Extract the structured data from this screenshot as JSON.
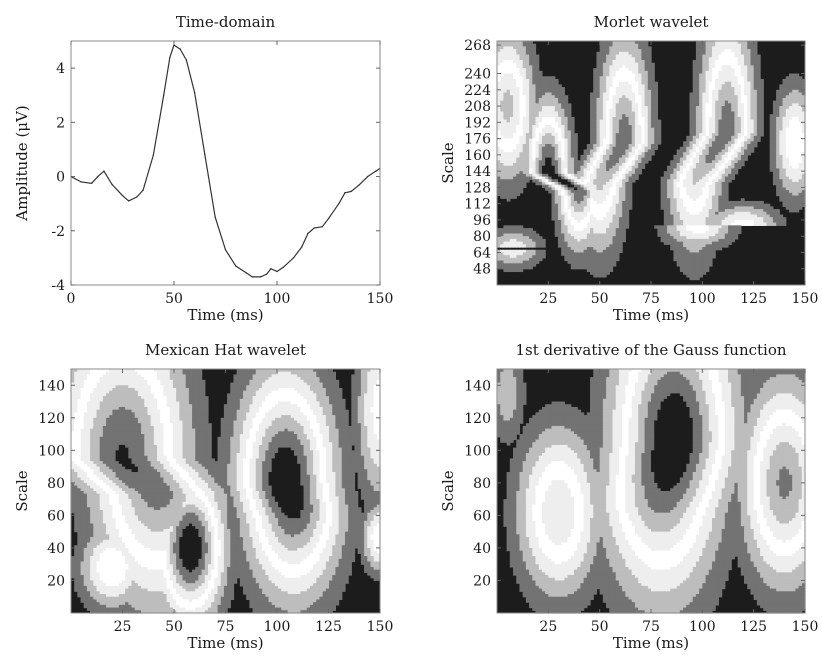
{
  "chart_data": [
    {
      "id": "time-domain",
      "type": "line",
      "title": "Time-domain",
      "xlabel": "Time (ms)",
      "ylabel": "Amplitude (μV)",
      "xlim": [
        0,
        150
      ],
      "ylim": [
        -4,
        5
      ],
      "xticks": [
        0,
        50,
        100,
        150
      ],
      "yticks": [
        -4,
        -2,
        0,
        2,
        4
      ],
      "grid": false,
      "series": [
        {
          "x": [
            0,
            5,
            10,
            13,
            16,
            20,
            25,
            28,
            32,
            35,
            40,
            45,
            48,
            50,
            53,
            56,
            60,
            65,
            70,
            75,
            80,
            85,
            88,
            92,
            95,
            97,
            100,
            103,
            108,
            112,
            115,
            118,
            122,
            125,
            130,
            133,
            136,
            140,
            144,
            148,
            150
          ],
          "y": [
            0.0,
            -0.2,
            -0.25,
            0.0,
            0.2,
            -0.3,
            -0.7,
            -0.9,
            -0.75,
            -0.5,
            0.8,
            3.0,
            4.4,
            4.85,
            4.7,
            4.3,
            3.1,
            0.8,
            -1.5,
            -2.7,
            -3.3,
            -3.55,
            -3.7,
            -3.7,
            -3.6,
            -3.4,
            -3.5,
            -3.35,
            -3.0,
            -2.6,
            -2.1,
            -1.9,
            -1.85,
            -1.55,
            -1.0,
            -0.6,
            -0.55,
            -0.3,
            0.0,
            0.2,
            0.3
          ]
        }
      ]
    },
    {
      "id": "morlet",
      "type": "heatmap",
      "title": "Morlet wavelet",
      "xlabel": "Time (ms)",
      "ylabel": "Scale",
      "xlim": [
        0,
        150
      ],
      "ylim": [
        32,
        272
      ],
      "xticks": [
        25,
        50,
        75,
        100,
        125,
        150
      ],
      "yticks": [
        48,
        64,
        80,
        96,
        112,
        128,
        144,
        160,
        176,
        192,
        208,
        224,
        240,
        268
      ],
      "levels": 9,
      "colormap": "grayscale, darkest = zero magnitude",
      "blobs": [
        {
          "t": 25,
          "s": 142,
          "dt": 40,
          "ds": 125,
          "w": 7,
          "h": 46,
          "tilt": 0.06,
          "peak": 0.95
        },
        {
          "t": 62,
          "s": 172,
          "dt": 50,
          "ds": 132,
          "w": 8.5,
          "h": 66,
          "tilt": 0.1,
          "peak": 0.85
        },
        {
          "t": 112,
          "s": 182,
          "dt": 96,
          "ds": 132,
          "w": 9,
          "h": 72,
          "tilt": 0.08,
          "peak": 0.85
        },
        {
          "t": 5,
          "s": 208,
          "dt": 5,
          "ds": 132,
          "w": 9,
          "h": 48,
          "tilt": 0.02,
          "peak": 0.7
        },
        {
          "t": 145,
          "s": 172,
          "dt": 145,
          "ds": 132,
          "w": 7,
          "h": 38,
          "tilt": 0.0,
          "peak": 0.55
        },
        {
          "t": 120,
          "s": 90,
          "dt": 98,
          "ds": 90,
          "w": 12,
          "h": 15,
          "tilt": 0.6,
          "peak": 0.5
        },
        {
          "t": 8,
          "s": 68,
          "dt": 8,
          "ds": 68,
          "w": 10,
          "h": 14,
          "tilt": 0.3,
          "peak": 0.4
        }
      ]
    },
    {
      "id": "mexican-hat",
      "type": "heatmap",
      "title": "Mexican Hat wavelet",
      "xlabel": "Time (ms)",
      "ylabel": "Scale",
      "xlim": [
        0,
        150
      ],
      "ylim": [
        0,
        150
      ],
      "xticks": [
        25,
        50,
        75,
        100,
        125,
        150
      ],
      "yticks": [
        20,
        40,
        60,
        80,
        100,
        120,
        140
      ],
      "levels": 9,
      "colormap": "grayscale, darkest = zero magnitude",
      "blobs": [
        {
          "t": 25,
          "s": 95,
          "dt": 42,
          "ds": 72,
          "w": 21,
          "h": 58,
          "tilt": 0.22,
          "peak": 0.9
        },
        {
          "t": 58,
          "s": 40,
          "dt": 58,
          "ds": 40,
          "w": 11,
          "h": 30,
          "tilt": 0.0,
          "peak": 1.0
        },
        {
          "t": 104,
          "s": 80,
          "dt": 108,
          "ds": 58,
          "w": 16,
          "h": 46,
          "tilt": 0.18,
          "peak": 1.0
        },
        {
          "t": 20,
          "s": 28,
          "dt": 20,
          "ds": 28,
          "w": 11,
          "h": 18,
          "tilt": 0.5,
          "peak": 0.55
        },
        {
          "t": 150,
          "s": 46,
          "dt": 150,
          "ds": 46,
          "w": 6,
          "h": 15,
          "tilt": 0.0,
          "peak": 0.55
        },
        {
          "t": 150,
          "s": 125,
          "dt": 150,
          "ds": 125,
          "w": 8,
          "h": 40,
          "tilt": 0.0,
          "peak": 0.5
        }
      ]
    },
    {
      "id": "gauss-derivative",
      "type": "heatmap",
      "title": "1st derivative of the Gauss function",
      "xlabel": "Time (ms)",
      "ylabel": "Scale",
      "xlim": [
        0,
        150
      ],
      "ylim": [
        0,
        150
      ],
      "xticks": [
        25,
        50,
        75,
        100,
        125,
        150
      ],
      "yticks": [
        20,
        40,
        60,
        80,
        100,
        120,
        140
      ],
      "levels": 9,
      "colormap": "grayscale, darkest = zero magnitude",
      "blobs": [
        {
          "t": 86,
          "s": 105,
          "dt": 80,
          "ds": 62,
          "w": 20,
          "h": 62,
          "tilt": -0.05,
          "peak": 1.0
        },
        {
          "t": 30,
          "s": 62,
          "dt": 30,
          "ds": 62,
          "w": 14,
          "h": 36,
          "tilt": 0.15,
          "peak": 0.65
        },
        {
          "t": 140,
          "s": 80,
          "dt": 140,
          "ds": 80,
          "w": 14,
          "h": 42,
          "tilt": -0.05,
          "peak": 0.8
        },
        {
          "t": 5,
          "s": 135,
          "dt": 5,
          "ds": 135,
          "w": 6,
          "h": 22,
          "tilt": 0.0,
          "peak": 0.3
        }
      ]
    }
  ]
}
